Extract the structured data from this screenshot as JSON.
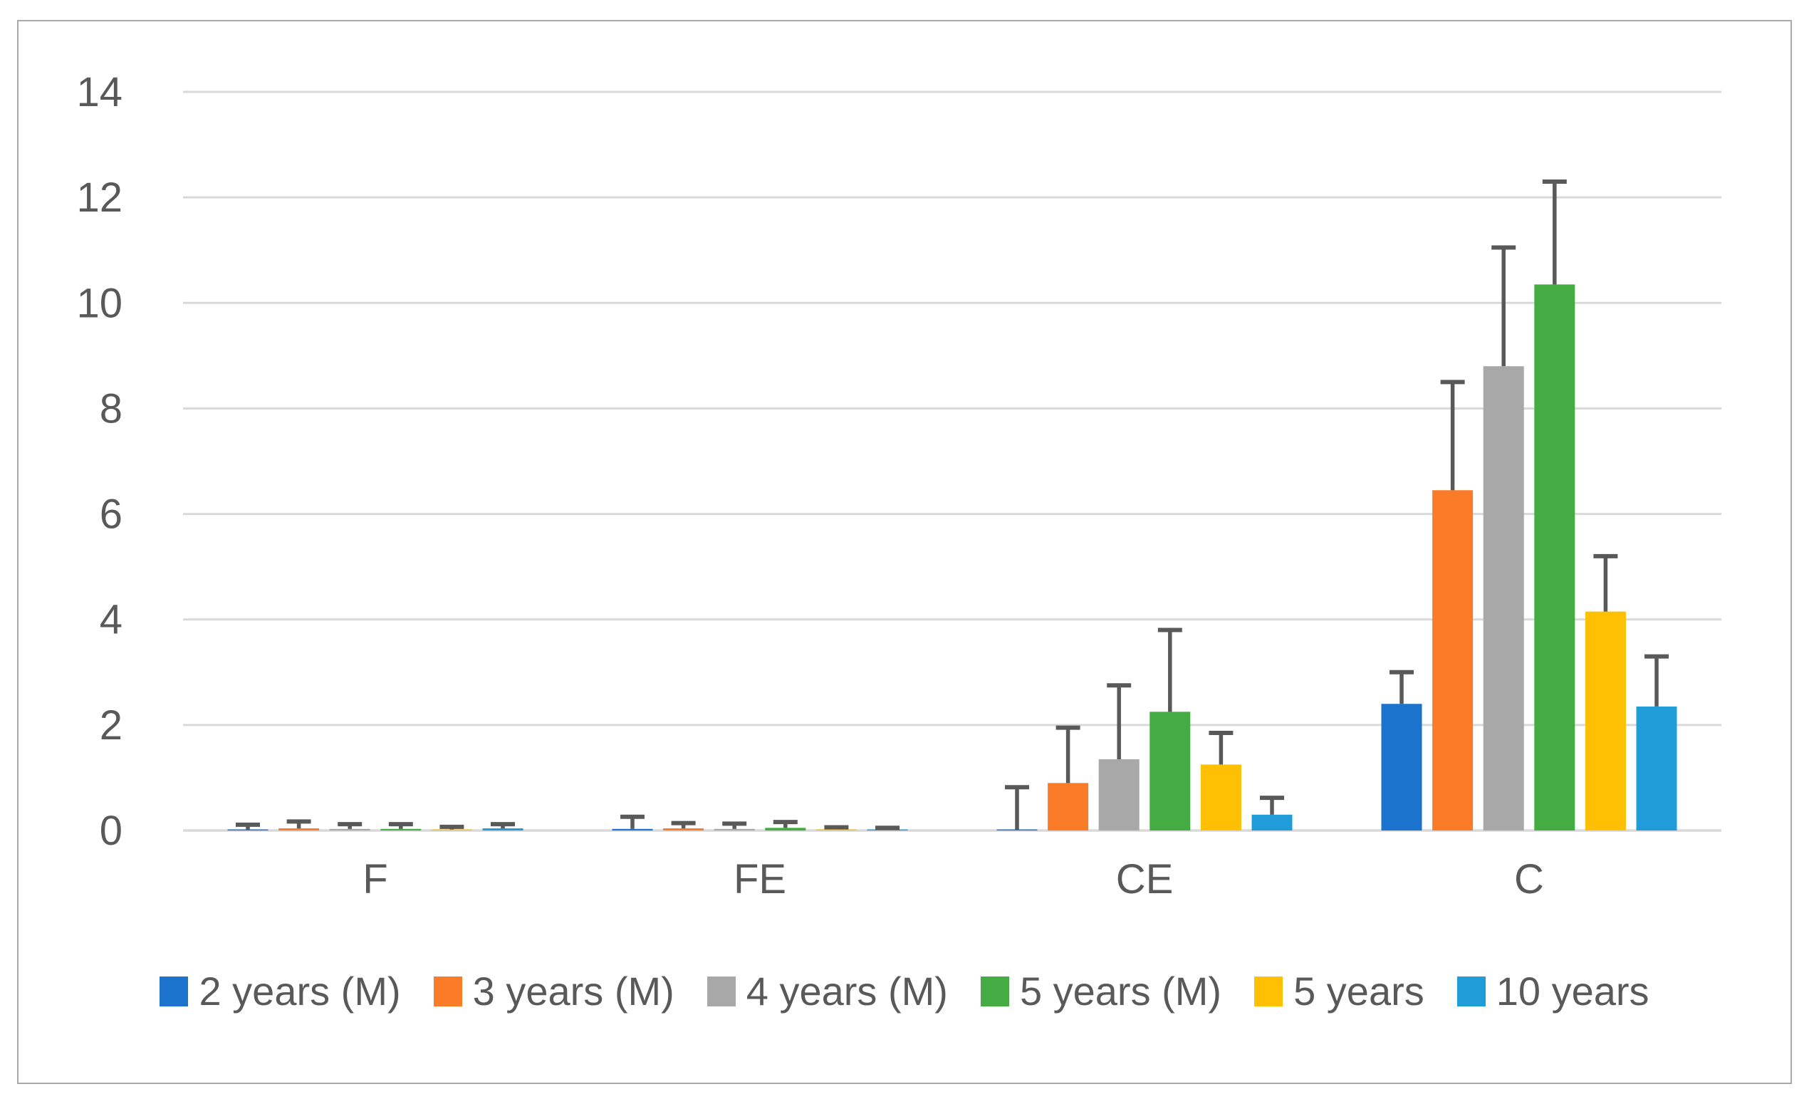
{
  "chart_data": {
    "type": "bar",
    "title": "",
    "xlabel": "",
    "ylabel": "",
    "categories": [
      "F",
      "FE",
      "CE",
      "C"
    ],
    "series": [
      {
        "name": "2 years (M)",
        "color": "#1c73ce",
        "values": [
          0.02,
          0.03,
          0.02,
          2.4
        ],
        "errors": [
          0.09,
          0.23,
          0.8,
          0.6
        ]
      },
      {
        "name": "3 years (M)",
        "color": "#fb7c28",
        "values": [
          0.04,
          0.04,
          0.9,
          6.45
        ],
        "errors": [
          0.13,
          0.1,
          1.05,
          2.05
        ]
      },
      {
        "name": "4 years (M)",
        "color": "#a8a8a8",
        "values": [
          0.03,
          0.03,
          1.35,
          8.8
        ],
        "errors": [
          0.09,
          0.1,
          1.4,
          2.25
        ]
      },
      {
        "name": "5 years (M)",
        "color": "#45ac43",
        "values": [
          0.03,
          0.05,
          2.25,
          10.35
        ],
        "errors": [
          0.09,
          0.11,
          1.55,
          1.95
        ]
      },
      {
        "name": "5 years",
        "color": "#ffc003",
        "values": [
          0.02,
          0.02,
          1.25,
          4.15
        ],
        "errors": [
          0.05,
          0.04,
          0.6,
          1.05
        ]
      },
      {
        "name": "10 years",
        "color": "#209cd8",
        "values": [
          0.04,
          0.02,
          0.3,
          2.35
        ],
        "errors": [
          0.08,
          0.03,
          0.32,
          0.95
        ]
      }
    ],
    "ylim": [
      0,
      14
    ],
    "yticks": [
      0,
      2,
      4,
      6,
      8,
      10,
      12,
      14
    ],
    "grid": true,
    "error_bars": "plus-direction",
    "legend_position": "bottom",
    "gridline_color": "#d9d9d9",
    "error_bar_color": "#595959",
    "axis_text_color": "#595959",
    "frame_color": "#a9a9a9"
  }
}
